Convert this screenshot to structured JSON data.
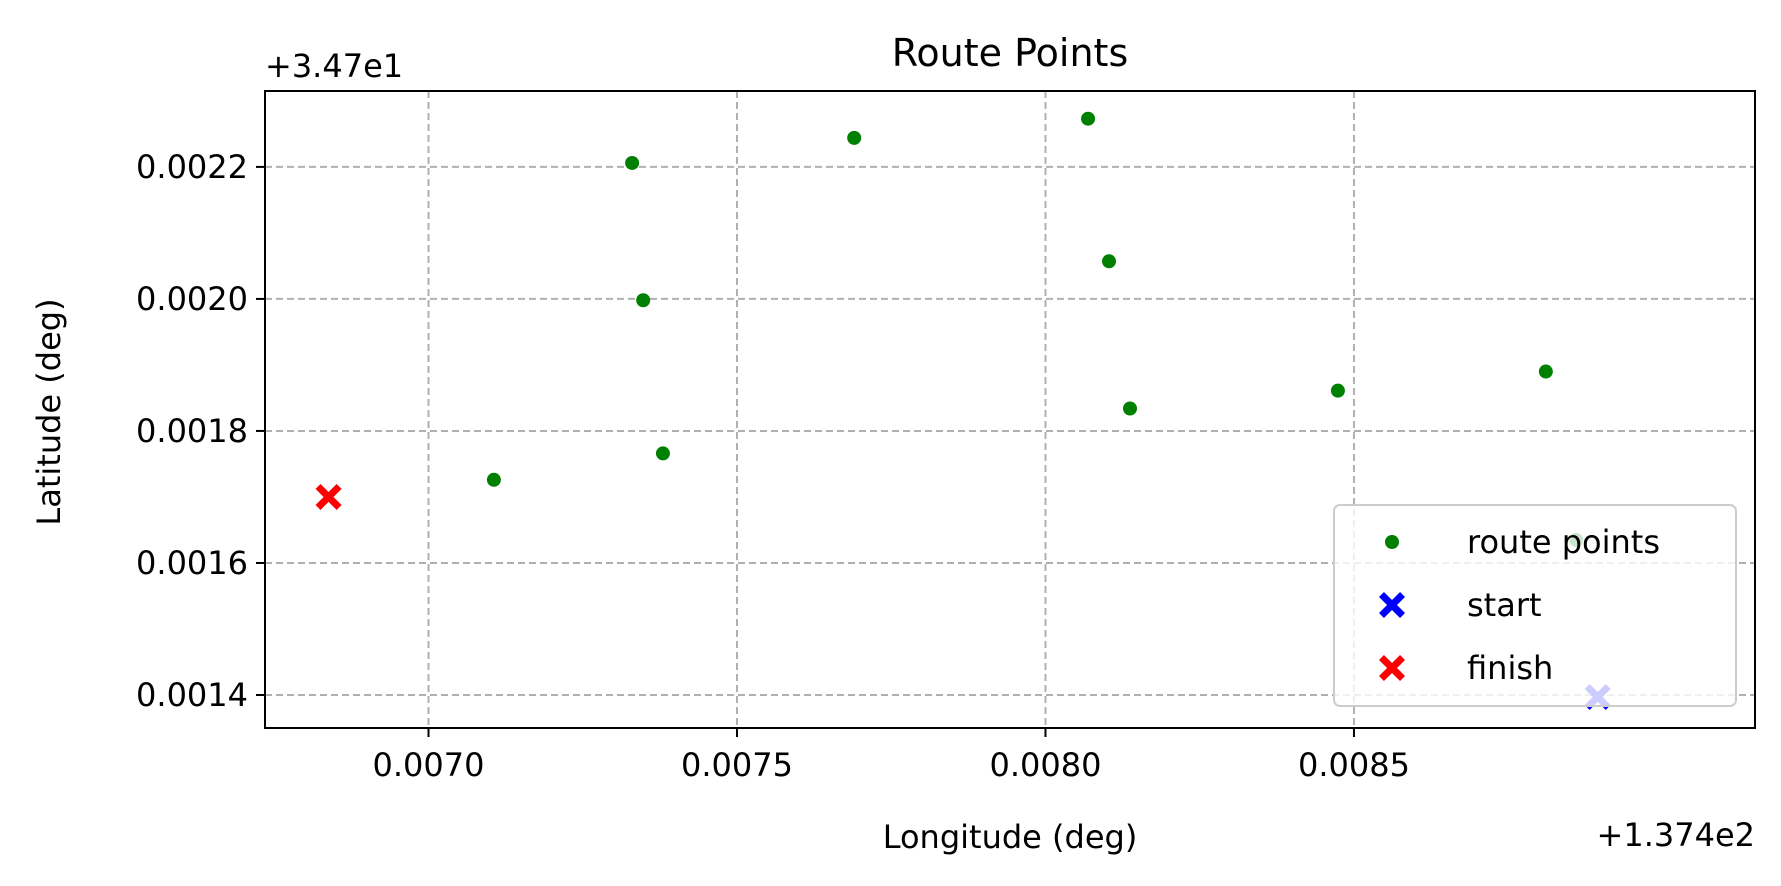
{
  "chart_data": {
    "type": "scatter",
    "title": "Route Points",
    "xlabel": "Longitude (deg)",
    "ylabel": "Latitude (deg)",
    "x_offset_label": "+1.374e2",
    "y_offset_label": "+3.47e1",
    "xlim": [
      0.006735,
      0.00915
    ],
    "ylim": [
      0.00135,
      0.002315
    ],
    "xticks": [
      0.007,
      0.0075,
      0.008,
      0.0085
    ],
    "xtick_labels": [
      "0.0070",
      "0.0075",
      "0.0080",
      "0.0085"
    ],
    "yticks": [
      0.0014,
      0.0016,
      0.0018,
      0.002,
      0.0022
    ],
    "ytick_labels": [
      "0.0014",
      "0.0016",
      "0.0018",
      "0.0020",
      "0.0022"
    ],
    "grid": true,
    "legend_position": "lower right",
    "series": [
      {
        "name": "route points",
        "marker": "circle",
        "color": "#008000",
        "points": [
          {
            "x": 0.007106,
            "y": 0.001726
          },
          {
            "x": 0.00733,
            "y": 0.002206
          },
          {
            "x": 0.007348,
            "y": 0.001998
          },
          {
            "x": 0.00738,
            "y": 0.001766
          },
          {
            "x": 0.00769,
            "y": 0.002244
          },
          {
            "x": 0.008069,
            "y": 0.002273
          },
          {
            "x": 0.008103,
            "y": 0.002057
          },
          {
            "x": 0.008137,
            "y": 0.001834
          },
          {
            "x": 0.008474,
            "y": 0.001861
          },
          {
            "x": 0.008811,
            "y": 0.00189
          },
          {
            "x": 0.00886,
            "y": 0.001635
          }
        ]
      },
      {
        "name": "start",
        "marker": "x-filled",
        "color": "#0000ff",
        "points": [
          {
            "x": 0.008895,
            "y": 0.001397
          }
        ]
      },
      {
        "name": "finish",
        "marker": "x-filled",
        "color": "#ff0000",
        "points": [
          {
            "x": 0.006838,
            "y": 0.0017
          }
        ]
      }
    ]
  }
}
